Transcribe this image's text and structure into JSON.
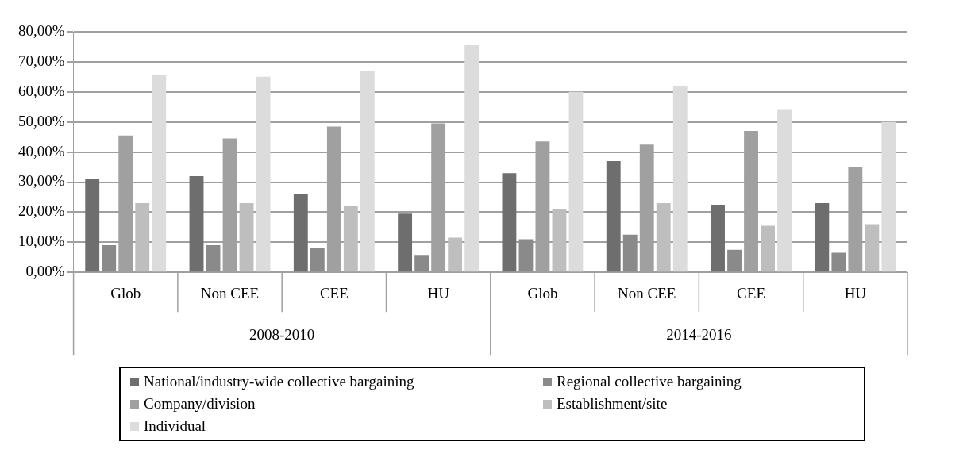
{
  "chart_data": {
    "type": "bar",
    "categories": [
      "Glob",
      "Non CEE",
      "CEE",
      "HU",
      "Glob",
      "Non CEE",
      "CEE",
      "HU"
    ],
    "series": [
      {
        "name": "National/industry-wide collective bargaining",
        "color": "#6e6e6e",
        "values": [
          31,
          32,
          26,
          19.5,
          33,
          37,
          22.5,
          23
        ]
      },
      {
        "name": "Regional collective bargaining",
        "color": "#8a8a8a",
        "values": [
          9,
          9,
          8,
          5.5,
          11,
          12.5,
          7.5,
          6.5
        ]
      },
      {
        "name": "Company/division",
        "color": "#a0a0a0",
        "values": [
          45.5,
          44.5,
          48.5,
          49.5,
          43.5,
          42.5,
          47,
          35
        ]
      },
      {
        "name": "Establishment/site",
        "color": "#bebebe",
        "values": [
          23,
          23,
          22,
          11.5,
          21,
          23,
          15.5,
          16
        ]
      },
      {
        "name": "Individual",
        "color": "#dcdcdc",
        "values": [
          65.5,
          65,
          67,
          75.5,
          60,
          62,
          54,
          50
        ]
      }
    ],
    "ylim": [
      0,
      80
    ],
    "yticks": [
      {
        "value": 0,
        "label": "0,00%"
      },
      {
        "value": 10,
        "label": "10,00%"
      },
      {
        "value": 20,
        "label": "20,00%"
      },
      {
        "value": 30,
        "label": "30,00%"
      },
      {
        "value": 40,
        "label": "40,00%"
      },
      {
        "value": 50,
        "label": "50,00%"
      },
      {
        "value": 60,
        "label": "60,00%"
      },
      {
        "value": 70,
        "label": "70,00%"
      },
      {
        "value": 80,
        "label": "80,00%"
      }
    ],
    "annotations": [
      "2008-2010",
      "2014-2016"
    ],
    "grid": "y",
    "legend": "bottom"
  }
}
